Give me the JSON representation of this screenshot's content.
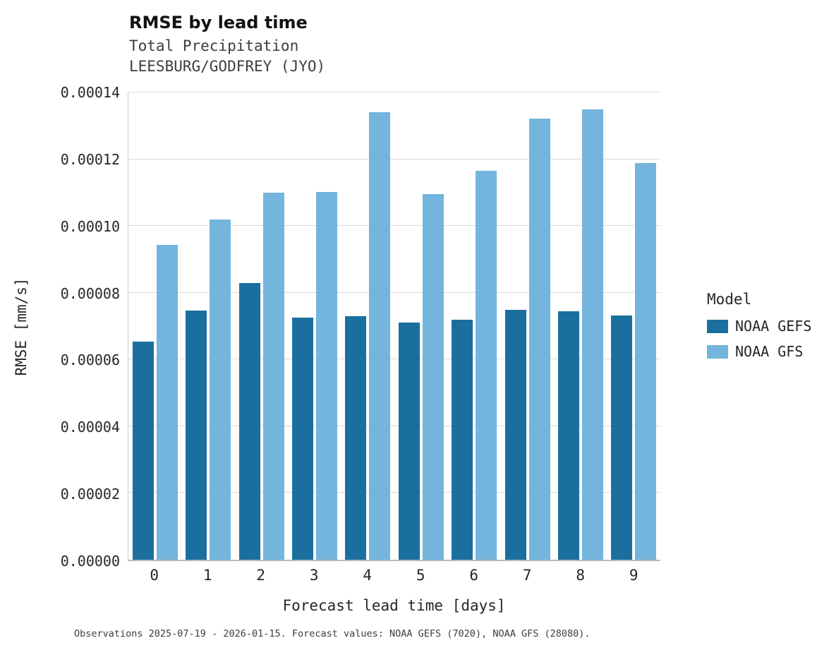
{
  "chart_data": {
    "type": "bar",
    "title": "RMSE by lead time",
    "subtitle1": "Total Precipitation",
    "subtitle2": "LEESBURG/GODFREY (JYO)",
    "xlabel": "Forecast lead time [days]",
    "ylabel": "RMSE [mm/s]",
    "legend_title": "Model",
    "categories": [
      "0",
      "1",
      "2",
      "3",
      "4",
      "5",
      "6",
      "7",
      "8",
      "9"
    ],
    "series": [
      {
        "name": "NOAA GEFS",
        "color": "#1a6f9e",
        "values": [
          6.53e-05,
          7.46e-05,
          8.28e-05,
          7.26e-05,
          7.29e-05,
          7.11e-05,
          7.2e-05,
          7.48e-05,
          7.45e-05,
          7.31e-05
        ]
      },
      {
        "name": "NOAA GFS",
        "color": "#73b5dc",
        "values": [
          9.43e-05,
          0.0001019,
          0.00011,
          0.0001101,
          0.0001341,
          0.0001095,
          0.0001166,
          0.0001322,
          0.0001349,
          0.0001188
        ]
      }
    ],
    "ylim": [
      0,
      0.00014
    ],
    "yticks": [
      {
        "value": 0.0,
        "label": "0.00000"
      },
      {
        "value": 2e-05,
        "label": "0.00002"
      },
      {
        "value": 4e-05,
        "label": "0.00004"
      },
      {
        "value": 6e-05,
        "label": "0.00006"
      },
      {
        "value": 8e-05,
        "label": "0.00008"
      },
      {
        "value": 0.0001,
        "label": "0.00010"
      },
      {
        "value": 0.00012,
        "label": "0.00012"
      },
      {
        "value": 0.00014,
        "label": "0.00014"
      }
    ],
    "grid": true,
    "legend_position": "right",
    "caption": "Observations 2025-07-19 - 2026-01-15. Forecast values: NOAA GEFS (7020), NOAA GFS (28080)."
  }
}
